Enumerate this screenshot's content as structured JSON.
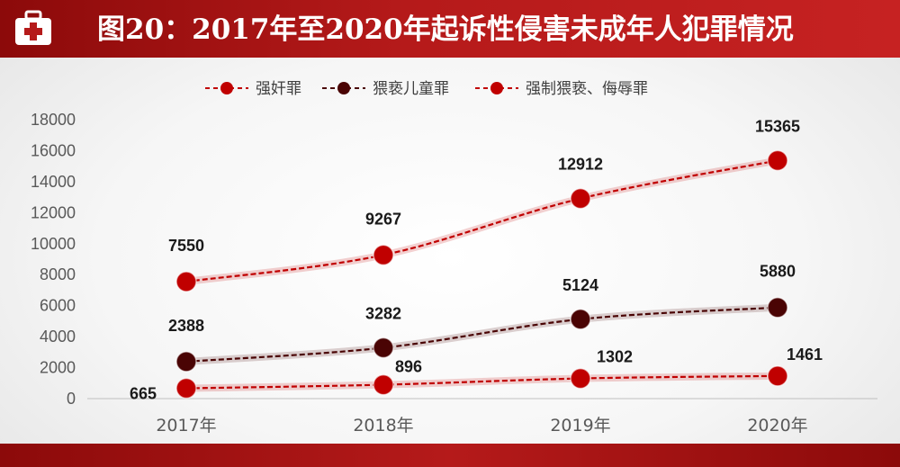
{
  "header": {
    "title": "图20：2017年至2020年起诉性侵害未成年人犯罪情况",
    "icon": "medical-kit-icon"
  },
  "colors": {
    "brand_red": "#b51a1a",
    "series_red": "#c00000",
    "series_dark": "#4a0404"
  },
  "chart_data": {
    "type": "line",
    "title": "图20：2017年至2020年起诉性侵害未成年人犯罪情况",
    "categories": [
      "2017年",
      "2018年",
      "2019年",
      "2020年"
    ],
    "ylim": [
      0,
      18000
    ],
    "yticks": [
      0,
      2000,
      4000,
      6000,
      8000,
      10000,
      12000,
      14000,
      16000,
      18000
    ],
    "grid": false,
    "legend_position": "top",
    "series": [
      {
        "name": "强奸罪",
        "values": [
          7550,
          9267,
          12912,
          15365
        ],
        "color": "#c00000"
      },
      {
        "name": "猥亵儿童罪",
        "values": [
          2388,
          3282,
          5124,
          5880
        ],
        "color": "#4a0404"
      },
      {
        "name": "强制猥亵、侮辱罪",
        "values": [
          665,
          896,
          1302,
          1461
        ],
        "color": "#c00000"
      }
    ]
  }
}
